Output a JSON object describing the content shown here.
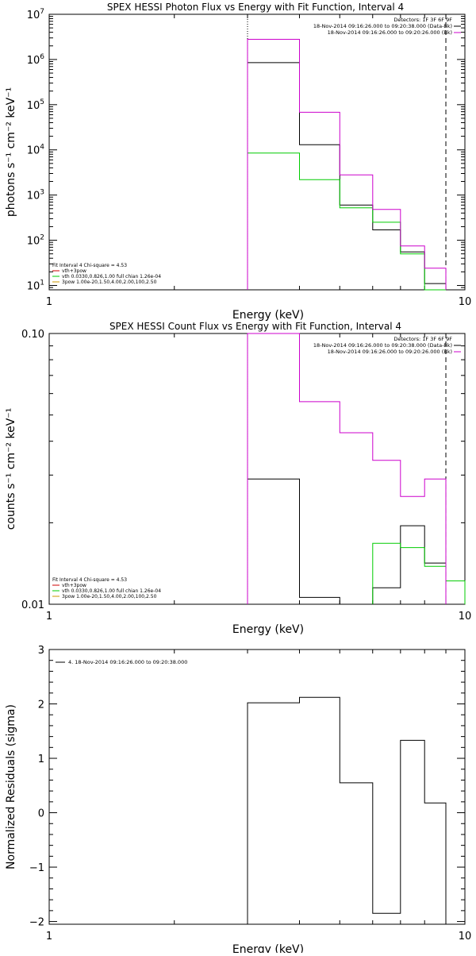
{
  "colors": {
    "photon_model": "#000000",
    "vth": "#00cc00",
    "bpow": "#cc9900",
    "data": "#cc00cc",
    "legend_model": "#cc0000",
    "residual": "#000000"
  },
  "chart_data": [
    {
      "type": "line",
      "title": "SPEX HESSI Photon Flux vs Energy with Fit Function, Interval 4",
      "xlabel": "Energy (keV)",
      "ylabel": "photons s⁻¹ cm⁻² keV⁻¹",
      "x_scale": "log",
      "y_scale": "log",
      "xlim": [
        1,
        10
      ],
      "ylim": [
        8,
        10000000
      ],
      "x_tick_labels": [
        {
          "v": 1,
          "t": "1"
        },
        {
          "v": 10,
          "t": "10"
        }
      ],
      "y_tick_labels": [
        {
          "v": 10,
          "t": "10",
          "e": "1"
        },
        {
          "v": 100,
          "t": "10",
          "e": "2"
        },
        {
          "v": 1000,
          "t": "10",
          "e": "3"
        },
        {
          "v": 10000,
          "t": "10",
          "e": "4"
        },
        {
          "v": 100000,
          "t": "10",
          "e": "5"
        },
        {
          "v": 1000000,
          "t": "10",
          "e": "6"
        },
        {
          "v": 10000000,
          "t": "10",
          "e": "7"
        }
      ],
      "fit_range_keV": [
        3.0,
        9.0
      ],
      "energy_edges": [
        3.0,
        4.0,
        5.0,
        6.0,
        7.0,
        8.0,
        9.0
      ],
      "series": [
        {
          "name": "photon model",
          "color": "#000000",
          "values": [
            850000,
            13000,
            600,
            170,
            55,
            11
          ]
        },
        {
          "name": "vth",
          "color": "#00cc00",
          "values": [
            8500,
            2200,
            520,
            250,
            50,
            8
          ]
        },
        {
          "name": "data",
          "color": "#cc00cc",
          "values": [
            2800000,
            68000,
            2800,
            480,
            75,
            24
          ]
        }
      ],
      "legend_top_right": [
        {
          "text": "Detectors: 1F 3F 6F 9F",
          "color": ""
        },
        {
          "text": "18-Nov-2014 09:16:26.000 to 09:20:38.000 (Data-Bk)",
          "color": "#000000"
        },
        {
          "text": "18-Nov-2014 09:16:26.000 to 09:20:26.000 (Bk)",
          "color": "#cc00cc"
        }
      ],
      "legend_bottom_left": [
        {
          "text": "Fit Interval 4   Chi-square = 4.53",
          "color": ""
        },
        {
          "text": "vth+3pow",
          "color": "#cc0000"
        },
        {
          "text": "vth 0.0330,0.826,1.00  full chian 1.26e-04",
          "color": "#00cc00"
        },
        {
          "text": "3pow 1.00e-20,1.50,4.00,2.00,100,2.50",
          "color": "#cc9900"
        }
      ]
    },
    {
      "type": "line",
      "title": "SPEX HESSI Count Flux vs Energy with Fit Function, Interval 4",
      "xlabel": "Energy (keV)",
      "ylabel": "counts s⁻¹ cm⁻² keV⁻¹",
      "x_scale": "log",
      "y_scale": "log",
      "xlim": [
        1,
        10
      ],
      "ylim": [
        0.01,
        0.1
      ],
      "x_tick_labels": [
        {
          "v": 1,
          "t": "1"
        },
        {
          "v": 10,
          "t": "10"
        }
      ],
      "y_tick_labels": [
        {
          "v": 0.01,
          "t": "0.01"
        },
        {
          "v": 0.1,
          "t": "0.10"
        }
      ],
      "fit_range_keV": [
        3.0,
        9.0
      ],
      "energy_edges": [
        3.0,
        4.0,
        5.0,
        6.0,
        7.0,
        8.0,
        9.0,
        10.0
      ],
      "series": [
        {
          "name": "count model",
          "color": "#000000",
          "values": [
            0.029,
            0.0106,
            0.0099,
            0.0115,
            0.0195,
            0.0142,
            null
          ]
        },
        {
          "name": "vth",
          "color": "#00cc00",
          "values": [
            null,
            null,
            null,
            0.0168,
            0.0162,
            0.0138,
            0.0122
          ]
        },
        {
          "name": "data",
          "color": "#cc00cc",
          "values": [
            0.1,
            0.056,
            0.043,
            0.034,
            0.025,
            0.029,
            null
          ]
        }
      ],
      "legend_top_right": [
        {
          "text": "Detectors: 1F 3F 6F 9F",
          "color": ""
        },
        {
          "text": "18-Nov-2014 09:16:26.000 to 09:20:38.000 (Data-Bk)",
          "color": "#000000"
        },
        {
          "text": "18-Nov-2014 09:16:26.000 to 09:20:26.000 (Bk)",
          "color": "#cc00cc"
        }
      ],
      "legend_bottom_left": [
        {
          "text": "Fit Interval 4   Chi-square = 4.53",
          "color": ""
        },
        {
          "text": "vth+3pow",
          "color": "#cc0000"
        },
        {
          "text": "vth 0.0330,0.826,1.00  full chian 1.26e-04",
          "color": "#00cc00"
        },
        {
          "text": "3pow 1.00e-20,1.50,4.00,2.00,100,2.50",
          "color": "#cc9900"
        }
      ]
    },
    {
      "type": "line",
      "title": "",
      "xlabel": "Energy (keV)",
      "ylabel": "Normalized Residuals (sigma)",
      "x_scale": "log",
      "y_scale": "linear",
      "xlim": [
        1,
        10
      ],
      "ylim": [
        -2.05,
        3
      ],
      "x_tick_labels": [
        {
          "v": 1,
          "t": "1"
        },
        {
          "v": 10,
          "t": "10"
        }
      ],
      "y_tick_labels": [
        {
          "v": -2,
          "t": "−2"
        },
        {
          "v": -1,
          "t": "−1"
        },
        {
          "v": 0,
          "t": "0"
        },
        {
          "v": 1,
          "t": "1"
        },
        {
          "v": 2,
          "t": "2"
        },
        {
          "v": 3,
          "t": "3"
        }
      ],
      "energy_edges": [
        3.0,
        4.0,
        5.0,
        6.0,
        7.0,
        8.0,
        9.0
      ],
      "series": [
        {
          "name": "residuals",
          "color": "#000000",
          "values": [
            2.02,
            2.12,
            0.55,
            -1.85,
            1.33,
            0.18
          ]
        }
      ],
      "legend_top_left": [
        {
          "text": "4. 18-Nov-2014 09:16:26.000 to 09:20:38.000",
          "color": "#000000"
        }
      ]
    }
  ]
}
